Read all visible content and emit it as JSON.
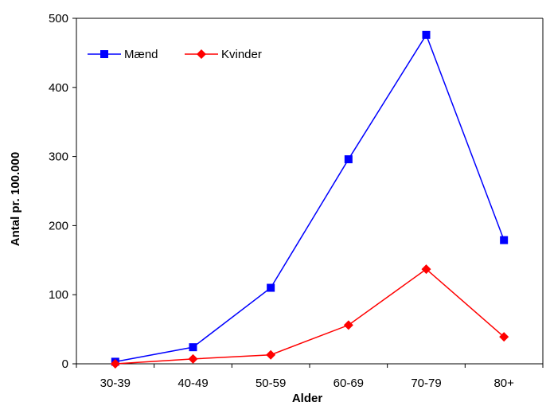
{
  "chart_data": {
    "type": "line",
    "categories": [
      "30-39",
      "40-49",
      "50-59",
      "60-69",
      "70-79",
      "80+"
    ],
    "series": [
      {
        "name": "Mænd",
        "values": [
          3,
          24,
          110,
          296,
          476,
          179
        ],
        "color": "#0000ff",
        "marker": "square"
      },
      {
        "name": "Kvinder",
        "values": [
          0,
          7,
          13,
          56,
          137,
          39
        ],
        "color": "#ff0000",
        "marker": "diamond"
      }
    ],
    "title": "",
    "xlabel": "Alder",
    "ylabel": "Antal pr. 100.000",
    "ylim": [
      0,
      500
    ],
    "yticks": [
      0,
      100,
      200,
      300,
      400,
      500
    ],
    "grid": false,
    "legend": "top-left"
  }
}
